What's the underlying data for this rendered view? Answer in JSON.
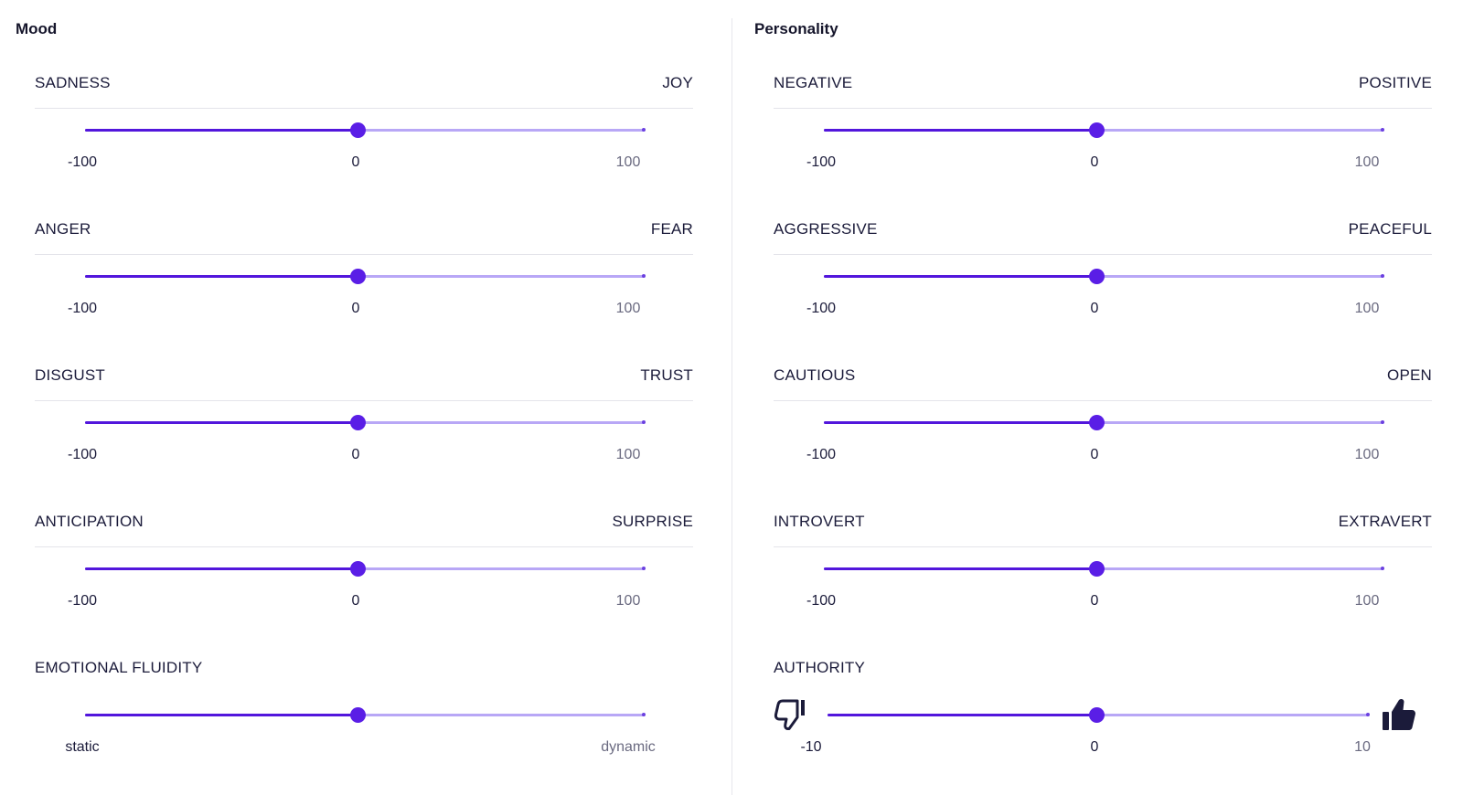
{
  "mood": {
    "title": "Mood",
    "sliders": [
      {
        "left": "SADNESS",
        "right": "JOY",
        "min": "-100",
        "mid": "0",
        "max": "100",
        "value": 0
      },
      {
        "left": "ANGER",
        "right": "FEAR",
        "min": "-100",
        "mid": "0",
        "max": "100",
        "value": 0
      },
      {
        "left": "DISGUST",
        "right": "TRUST",
        "min": "-100",
        "mid": "0",
        "max": "100",
        "value": 0
      },
      {
        "left": "ANTICIPATION",
        "right": "SURPRISE",
        "min": "-100",
        "mid": "0",
        "max": "100",
        "value": 0
      },
      {
        "left": "EMOTIONAL FLUIDITY",
        "min": "static",
        "max": "dynamic",
        "value": 0.5
      }
    ]
  },
  "personality": {
    "title": "Personality",
    "sliders": [
      {
        "left": "NEGATIVE",
        "right": "POSITIVE",
        "min": "-100",
        "mid": "0",
        "max": "100",
        "value": 0
      },
      {
        "left": "AGGRESSIVE",
        "right": "PEACEFUL",
        "min": "-100",
        "mid": "0",
        "max": "100",
        "value": 0
      },
      {
        "left": "CAUTIOUS",
        "right": "OPEN",
        "min": "-100",
        "mid": "0",
        "max": "100",
        "value": 0
      },
      {
        "left": "INTROVERT",
        "right": "EXTRAVERT",
        "min": "-100",
        "mid": "0",
        "max": "100",
        "value": 0
      },
      {
        "left": "AUTHORITY",
        "min": "-10",
        "mid": "0",
        "max": "10",
        "value": 0,
        "left_icon": "thumbs-down-icon",
        "right_icon": "thumbs-up-icon"
      }
    ]
  },
  "colors": {
    "accent": "#5216dc",
    "track": "#b8a7f6",
    "thumb": "#5a1ee6"
  }
}
